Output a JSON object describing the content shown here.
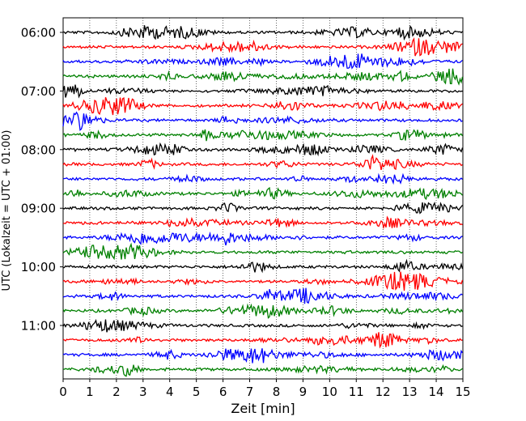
{
  "chart_data": {
    "type": "line",
    "title": "",
    "xlabel": "Zeit  [min]",
    "ylabel": "UTC (Lokalzeit = UTC + 01:00)",
    "xlim": [
      0,
      15
    ],
    "xticks": [
      0,
      1,
      2,
      3,
      4,
      5,
      6,
      7,
      8,
      9,
      10,
      11,
      12,
      13,
      14,
      15
    ],
    "grid": "vertical dotted",
    "legend": "none",
    "trace_colors": [
      "#000000",
      "#ff0000",
      "#0000ff",
      "#008000"
    ],
    "trace_minutes": 15,
    "start_time": "06:00",
    "trace_count": 24,
    "ytick_labels": [
      "06:00",
      "07:00",
      "08:00",
      "09:00",
      "10:00",
      "11:00"
    ],
    "ytick_trace_index": [
      0,
      4,
      8,
      12,
      16,
      20
    ]
  }
}
